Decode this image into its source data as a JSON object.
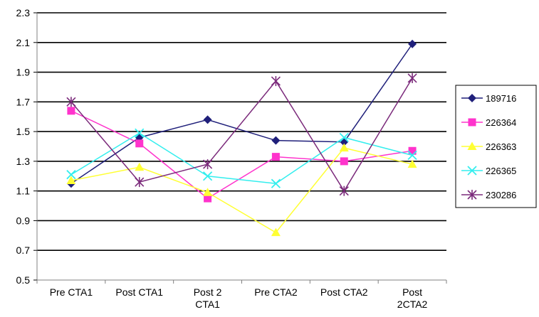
{
  "chart_data": {
    "type": "line",
    "title": "",
    "xlabel": "",
    "ylabel": "",
    "ylim": [
      0.5,
      2.3
    ],
    "yticks": [
      "0.5",
      "0.7",
      "0.9",
      "1.1",
      "1.3",
      "1.5",
      "1.7",
      "1.9",
      "2.1",
      "2.3"
    ],
    "grid": "horizontal",
    "legend_position": "right",
    "categories": [
      [
        "Pre CTA1"
      ],
      [
        "Post CTA1"
      ],
      [
        "Post 2",
        "CTA1"
      ],
      [
        "Pre CTA2"
      ],
      [
        "Post CTA2"
      ],
      [
        "Post",
        "2CTA2"
      ]
    ],
    "series": [
      {
        "name": "189716",
        "color": "#1f1f7a",
        "marker": "diamond",
        "values": [
          1.15,
          1.46,
          1.58,
          1.44,
          1.43,
          2.09
        ]
      },
      {
        "name": "226364",
        "color": "#ff33cc",
        "marker": "square",
        "values": [
          1.64,
          1.42,
          1.05,
          1.33,
          1.3,
          1.37
        ]
      },
      {
        "name": "226363",
        "color": "#ffff33",
        "marker": "triangle",
        "values": [
          1.17,
          1.26,
          1.09,
          0.82,
          1.39,
          1.28
        ]
      },
      {
        "name": "226365",
        "color": "#33eeee",
        "marker": "x",
        "values": [
          1.21,
          1.49,
          1.2,
          1.15,
          1.46,
          1.34
        ]
      },
      {
        "name": "230286",
        "color": "#7b2a7b",
        "marker": "star",
        "values": [
          1.7,
          1.16,
          1.28,
          1.84,
          1.1,
          1.86
        ]
      }
    ]
  }
}
